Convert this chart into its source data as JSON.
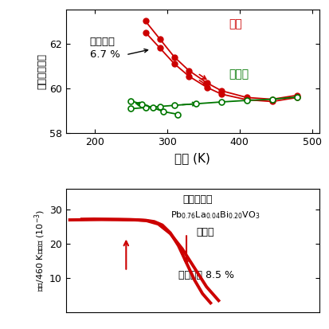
{
  "top_plot": {
    "xlabel": "温度 (K)",
    "ylabel": "単位格子体積",
    "xlim": [
      160,
      510
    ],
    "ylim": [
      58.0,
      63.5
    ],
    "yticks": [
      58,
      60,
      62
    ],
    "xticks": [
      200,
      300,
      400,
      500
    ],
    "red_filled_x": [
      270,
      290,
      310,
      330,
      355,
      375,
      410,
      445,
      480
    ],
    "red_filled_y1": [
      62.5,
      61.8,
      61.1,
      60.55,
      60.05,
      59.75,
      59.5,
      59.42,
      59.6
    ],
    "red_filled_y2": [
      63.0,
      62.2,
      61.4,
      60.8,
      60.25,
      59.9,
      59.6,
      59.52,
      59.7
    ],
    "green_open_x_heating": [
      250,
      270,
      290,
      310,
      340,
      375,
      410,
      445,
      480
    ],
    "green_open_y_heating": [
      59.1,
      59.15,
      59.2,
      59.25,
      59.32,
      59.4,
      59.47,
      59.52,
      59.62
    ],
    "green_open_x_cooling": [
      250,
      265,
      280,
      295,
      315
    ],
    "green_open_y_cooling": [
      59.45,
      59.3,
      59.15,
      58.97,
      58.85
    ],
    "annotation_red": "平均",
    "annotation_green": "高温相",
    "annotation_volume": "体積収縮\n6.7 %",
    "red_color": "#cc0000",
    "green_color": "#007700"
  },
  "bottom_plot": {
    "ylim": [
      0,
      36
    ],
    "yticks": [
      10,
      20,
      30
    ],
    "xlim": [
      195,
      510
    ],
    "annotation1": "熱機械分析",
    "annotation2_formula": "Pb$_{0.76}$La$_{0.04}$Bi$_{0.20}$VO$_3$",
    "annotation3": "焼結体",
    "annotation4": "体積収縮 8.5 %",
    "red_color": "#cc0000",
    "curve_heating_x": [
      200,
      220,
      240,
      260,
      280,
      295,
      305,
      315,
      325,
      335,
      345,
      355,
      365,
      375
    ],
    "curve_heating_y": [
      27.0,
      27.05,
      27.1,
      27.08,
      27.0,
      26.85,
      26.5,
      25.5,
      23.2,
      19.5,
      14.5,
      9.5,
      5.5,
      2.8
    ],
    "curve_cooling_x": [
      215,
      230,
      245,
      260,
      275,
      285,
      295,
      310,
      325,
      340,
      355,
      370,
      385
    ],
    "curve_cooling_y": [
      27.2,
      27.25,
      27.2,
      27.15,
      27.1,
      27.0,
      26.8,
      25.8,
      23.0,
      18.5,
      13.0,
      7.5,
      3.5
    ]
  }
}
